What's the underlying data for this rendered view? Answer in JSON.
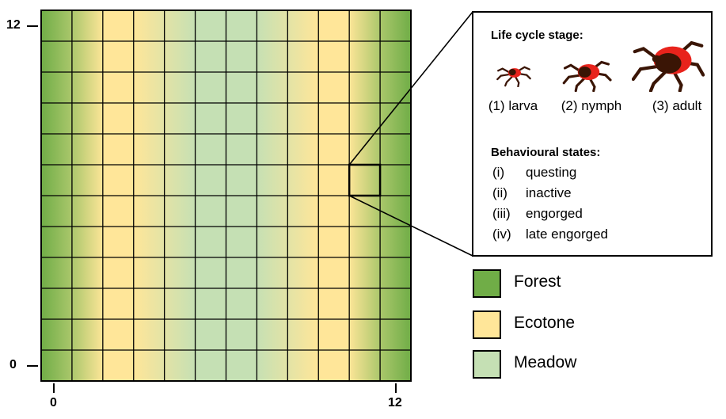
{
  "grid": {
    "columns": 12,
    "rows": 12,
    "column_habitats": [
      "Forest",
      "Ecotone",
      "Ecotone",
      "Ecotone",
      "Meadow",
      "Meadow",
      "Meadow",
      "Meadow",
      "Ecotone",
      "Ecotone",
      "Ecotone",
      "Forest"
    ],
    "highlighted_cell": {
      "col": 10,
      "row": 6
    }
  },
  "axes": {
    "y_top": "12",
    "y_bottom": "0",
    "x_left": "0",
    "x_right": "12"
  },
  "info": {
    "lifecycle_title": "Life cycle stage:",
    "stages": [
      {
        "label": "(1) larva",
        "icon": "larva-tick-icon"
      },
      {
        "label": "(2) nymph",
        "icon": "nymph-tick-icon"
      },
      {
        "label": "(3) adult",
        "icon": "adult-tick-icon"
      }
    ],
    "behaviour_title": "Behavioural states:",
    "states": [
      {
        "code": "(i)",
        "label": "questing"
      },
      {
        "code": "(ii)",
        "label": "inactive"
      },
      {
        "code": "(iii)",
        "label": "engorged"
      },
      {
        "code": "(iv)",
        "label": "late engorged"
      }
    ]
  },
  "legend": [
    {
      "label": "Forest",
      "color": "#70ad47"
    },
    {
      "label": "Ecotone",
      "color": "#ffe699"
    },
    {
      "label": "Meadow",
      "color": "#c5e0b4"
    }
  ],
  "colors": {
    "forest": "#70ad47",
    "ecotone": "#ffe699",
    "meadow": "#c5e0b4",
    "tick_red": "#e8231c",
    "tick_dark": "#3a1505"
  }
}
